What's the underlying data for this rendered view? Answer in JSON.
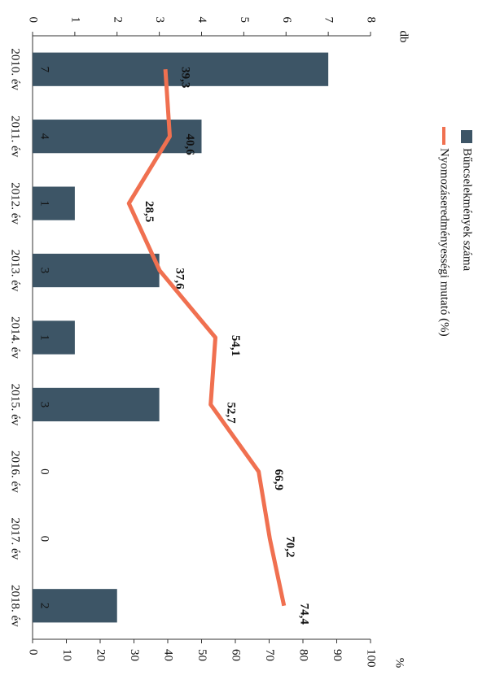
{
  "chart_data": {
    "type": "combo",
    "categories": [
      "2010. év",
      "2011. év",
      "2012. év",
      "2013. év",
      "2014. év",
      "2015. év",
      "2016. év",
      "2017. év",
      "2018. év"
    ],
    "series": [
      {
        "name": "Bűncselekmények száma",
        "type": "bar",
        "color": "#3d5566",
        "values": [
          7,
          4,
          1,
          3,
          1,
          3,
          0,
          0,
          2
        ]
      },
      {
        "name": "Nyomozáseredményességi mutató (%)",
        "type": "line",
        "axis": "y2",
        "color": "#f07050",
        "values": [
          39.3,
          40.6,
          28.5,
          37.6,
          54.1,
          52.7,
          66.9,
          70.2,
          74.4
        ],
        "value_labels": [
          "39,3",
          "40,6",
          "28,5",
          "37,6",
          "54,1",
          "52,7",
          "66,9",
          "70,2",
          "74,4"
        ]
      }
    ],
    "ylabel": "db",
    "y2label": "%",
    "ylim": [
      0,
      8
    ],
    "yticks": [
      0,
      1,
      2,
      3,
      4,
      5,
      6,
      7,
      8
    ],
    "y2lim": [
      0,
      100
    ],
    "y2ticks": [
      0,
      10,
      20,
      30,
      40,
      50,
      60,
      70,
      80,
      90,
      100
    ],
    "legend": "top"
  }
}
